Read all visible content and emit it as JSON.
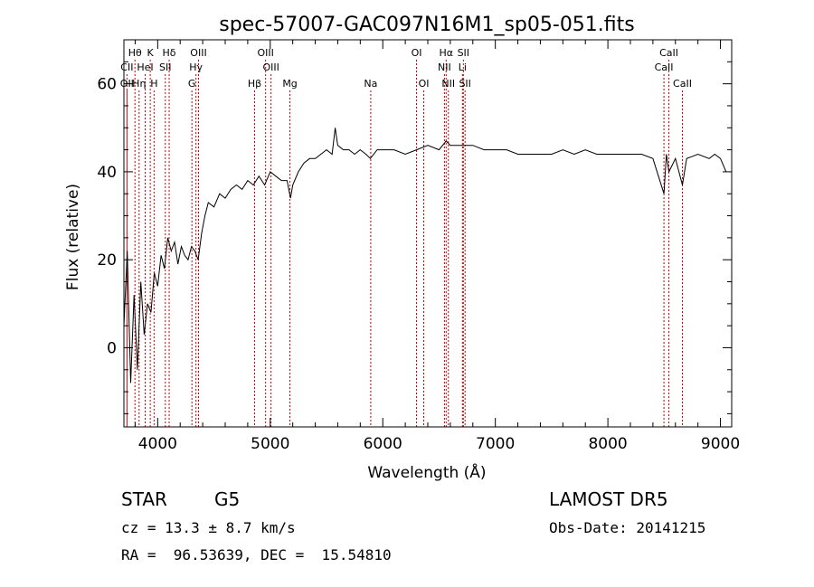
{
  "chart_data": {
    "type": "line",
    "title": "spec-57007-GAC097N16M1_sp05-051.fits",
    "xlabel": "Wavelength (Å)",
    "ylabel": "Flux (relative)",
    "xlim": [
      3700,
      9100
    ],
    "ylim": [
      -18,
      70
    ],
    "xticks": [
      4000,
      5000,
      6000,
      7000,
      8000,
      9000
    ],
    "yticks": [
      0,
      20,
      40,
      60
    ],
    "grid": false,
    "line_color": "#000000",
    "marker_color": "#cc0000",
    "series": [
      {
        "x": [
          3700,
          3730,
          3760,
          3790,
          3820,
          3850,
          3880,
          3910,
          3940,
          3970,
          4000,
          4030,
          4060,
          4090,
          4120,
          4150,
          4180,
          4210,
          4240,
          4270,
          4300,
          4330,
          4360,
          4390,
          4420,
          4450,
          4500,
          4550,
          4600,
          4650,
          4700,
          4750,
          4800,
          4850,
          4900,
          4950,
          5000,
          5050,
          5100,
          5150,
          5180,
          5200,
          5250,
          5300,
          5350,
          5400,
          5450,
          5500,
          5550,
          5577,
          5600,
          5650,
          5700,
          5750,
          5800,
          5850,
          5890,
          5950,
          6000,
          6100,
          6200,
          6300,
          6400,
          6500,
          6563,
          6600,
          6700,
          6800,
          6900,
          7000,
          7100,
          7200,
          7300,
          7400,
          7500,
          7600,
          7700,
          7800,
          7900,
          8000,
          8100,
          8200,
          8300,
          8400,
          8498,
          8520,
          8542,
          8600,
          8662,
          8700,
          8800,
          8900,
          8950,
          9000,
          9050
        ],
        "y": [
          5,
          22,
          -8,
          12,
          -5,
          15,
          3,
          10,
          8,
          17,
          14,
          21,
          18,
          25,
          22,
          24,
          19,
          23,
          21,
          20,
          23,
          22,
          20,
          26,
          30,
          33,
          32,
          35,
          34,
          36,
          37,
          36,
          38,
          37,
          39,
          37,
          40,
          39,
          38,
          38,
          34,
          37,
          40,
          42,
          43,
          43,
          44,
          45,
          44,
          50,
          46,
          45,
          45,
          44,
          45,
          44,
          43,
          45,
          45,
          45,
          44,
          45,
          46,
          45,
          47,
          46,
          46,
          46,
          45,
          45,
          45,
          44,
          44,
          44,
          44,
          45,
          44,
          45,
          44,
          44,
          44,
          44,
          44,
          43,
          35,
          44,
          40,
          43,
          37,
          43,
          44,
          43,
          44,
          43,
          40
        ]
      }
    ],
    "lines": {
      "row1": [
        {
          "label": "Hθ",
          "x": 3798
        },
        {
          "label": "K",
          "x": 3934
        },
        {
          "label": "Hδ",
          "x": 4102
        },
        {
          "label": "OIII",
          "x": 4363
        },
        {
          "label": "OIII",
          "x": 4959
        },
        {
          "label": "OI",
          "x": 6300
        },
        {
          "label": "Hα",
          "x": 6563
        },
        {
          "label": "SII",
          "x": 6716
        },
        {
          "label": "CaII",
          "x": 8542
        }
      ],
      "row2": [
        {
          "label": "CII",
          "x": 3727
        },
        {
          "label": "HeI",
          "x": 3889
        },
        {
          "label": "SII",
          "x": 4068
        },
        {
          "label": "Hγ",
          "x": 4340
        },
        {
          "label": "OIII",
          "x": 5007
        },
        {
          "label": "NII",
          "x": 6548
        },
        {
          "label": "Li",
          "x": 6708
        },
        {
          "label": "CaII",
          "x": 8498
        }
      ],
      "row3": [
        {
          "label": "OII",
          "x": 3727
        },
        {
          "label": "Hη",
          "x": 3835
        },
        {
          "label": "H",
          "x": 3968
        },
        {
          "label": "G",
          "x": 4304
        },
        {
          "label": "Hβ",
          "x": 4861
        },
        {
          "label": "Mg",
          "x": 5175
        },
        {
          "label": "Na",
          "x": 5893
        },
        {
          "label": "OI",
          "x": 6364
        },
        {
          "label": "NII",
          "x": 6583
        },
        {
          "label": "SII",
          "x": 6731
        },
        {
          "label": "CaII",
          "x": 8662
        }
      ]
    }
  },
  "info": {
    "class_label": "STAR",
    "subclass": "G5",
    "cz": "cz = 13.3 ± 8.7 km/s",
    "radec": "RA =  96.53639, DEC =  15.54810",
    "survey": "LAMOST DR5",
    "obs_date": "Obs-Date: 20141215"
  }
}
